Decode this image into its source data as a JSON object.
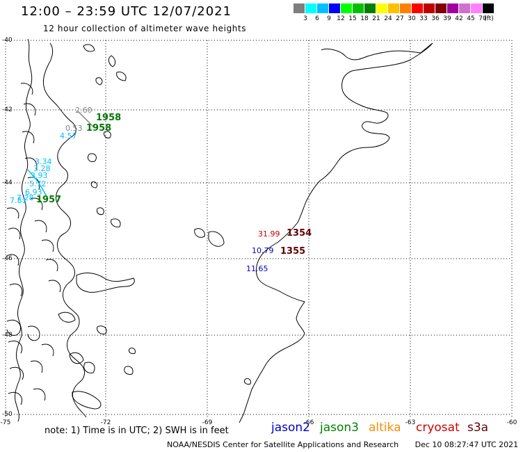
{
  "title": "12:00 – 23:59 UTC 12/07/2021",
  "subtitle": "12 hour collection of altimeter wave heights",
  "scale": {
    "unit": "(ft)",
    "levels": [
      {
        "label": "3",
        "color": "#7f7f7f"
      },
      {
        "label": "6",
        "color": "#00ffff"
      },
      {
        "label": "9",
        "color": "#00c0ff"
      },
      {
        "label": "12",
        "color": "#0000ff"
      },
      {
        "label": "15",
        "color": "#00ff00"
      },
      {
        "label": "18",
        "color": "#00c000"
      },
      {
        "label": "21",
        "color": "#008000"
      },
      {
        "label": "24",
        "color": "#ffff00"
      },
      {
        "label": "27",
        "color": "#ffc000"
      },
      {
        "label": "30",
        "color": "#ff8000"
      },
      {
        "label": "33",
        "color": "#ff0000"
      },
      {
        "label": "36",
        "color": "#c00000"
      },
      {
        "label": "39",
        "color": "#800000"
      },
      {
        "label": "42",
        "color": "#a000a0"
      },
      {
        "label": "45",
        "color": "#d070d0"
      },
      {
        "label": "70",
        "color": "#ff80ff"
      },
      {
        "label": "",
        "color": "#000000"
      }
    ]
  },
  "grid": {
    "latitudes": [
      "-40",
      "-42",
      "-44",
      "-46",
      "-48",
      "-50"
    ],
    "longitudes": [
      "-75",
      "-72",
      "-69",
      "-66",
      "-63",
      "-60"
    ]
  },
  "observations": [
    {
      "text": "1958",
      "color": "#007800",
      "kind": "pass"
    },
    {
      "text": "1958",
      "color": "#007800",
      "kind": "pass"
    },
    {
      "text": "4.57",
      "color": "#00bfff",
      "kind": "obs"
    },
    {
      "text": "0.53",
      "color": "#808080",
      "kind": "obs"
    },
    {
      "text": "2.60",
      "color": "#808080",
      "kind": "obs"
    },
    {
      "text": "3.34",
      "color": "#00bfff",
      "kind": "obs"
    },
    {
      "text": "3.28",
      "color": "#00bfff",
      "kind": "obs"
    },
    {
      "text": "3.93",
      "color": "#00bfff",
      "kind": "obs"
    },
    {
      "text": "5.72",
      "color": "#00bfff",
      "kind": "obs"
    },
    {
      "text": "6.93",
      "color": "#00bfff",
      "kind": "obs"
    },
    {
      "text": "7.28",
      "color": "#00bfff",
      "kind": "obs"
    },
    {
      "text": "7.81",
      "color": "#00bfff",
      "kind": "obs"
    },
    {
      "text": "1957",
      "color": "#007800",
      "kind": "pass"
    },
    {
      "text": "31.99",
      "color": "#c00000",
      "kind": "obs"
    },
    {
      "text": "1354",
      "color": "#600000",
      "kind": "pass"
    },
    {
      "text": "10.79",
      "color": "#0000c0",
      "kind": "obs"
    },
    {
      "text": "1355",
      "color": "#600000",
      "kind": "pass"
    },
    {
      "text": "11.65",
      "color": "#0000c0",
      "kind": "obs"
    }
  ],
  "note": "note: 1) Time is in UTC; 2) SWH is in feet",
  "satellites": [
    {
      "name": "jason2",
      "color": "#0000c0"
    },
    {
      "name": "jason3",
      "color": "#008000"
    },
    {
      "name": "altika",
      "color": "#ff8c00"
    },
    {
      "name": "cryosat",
      "color": "#d00000"
    },
    {
      "name": "s3a",
      "color": "#600000"
    }
  ],
  "footer": {
    "credit": "NOAA/NESDIS Center for Satellite Applications and Research",
    "timestamp": "Dec 10 08:27:47 UTC 2021"
  }
}
